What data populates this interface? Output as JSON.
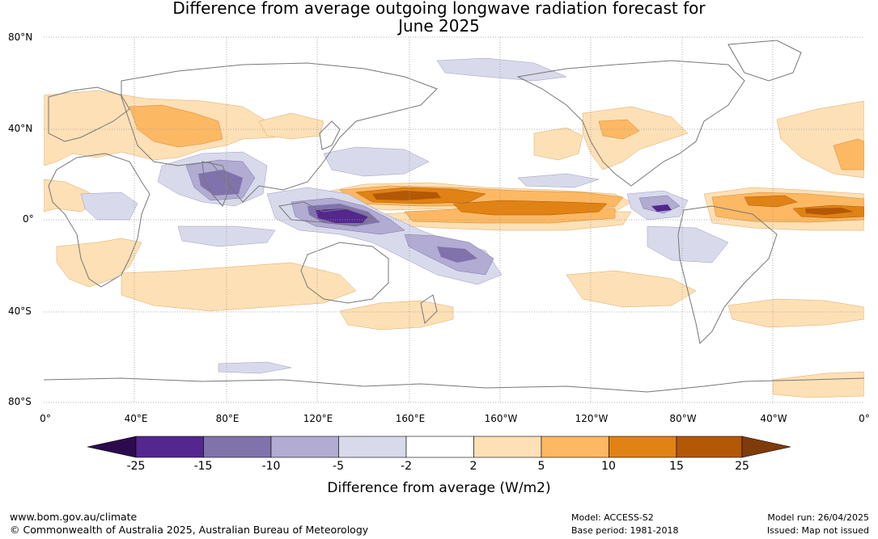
{
  "title": {
    "line1": "Difference from average outgoing longwave radiation forecast for",
    "line2": "June 2025"
  },
  "map": {
    "lat_labels": [
      "80°N",
      "40°N",
      "0°",
      "40°S",
      "80°S"
    ],
    "lon_labels": [
      "0°",
      "40°E",
      "80°E",
      "120°E",
      "160°E",
      "160°W",
      "120°W",
      "80°W",
      "40°W",
      "0°"
    ],
    "colors": {
      "land_outline": "#777777",
      "grid": "#999999"
    }
  },
  "colorbar": {
    "ticks": [
      "-25",
      "-15",
      "-10",
      "-5",
      "-2",
      "2",
      "5",
      "10",
      "15",
      "25"
    ],
    "bins": [
      {
        "range": "<-25",
        "color": "#2d0a4e"
      },
      {
        "range": "-25 to -15",
        "color": "#54278f"
      },
      {
        "range": "-15 to -10",
        "color": "#8073ac"
      },
      {
        "range": "-10 to -5",
        "color": "#b2abd2"
      },
      {
        "range": "-5 to -2",
        "color": "#d8daeb"
      },
      {
        "range": "-2 to 2",
        "color": "#ffffff"
      },
      {
        "range": "2 to 5",
        "color": "#fee0b6"
      },
      {
        "range": "5 to 10",
        "color": "#fdb863"
      },
      {
        "range": "10 to 15",
        "color": "#e08214"
      },
      {
        "range": "15 to 25",
        "color": "#b35806"
      },
      {
        "range": ">25",
        "color": "#7f3b08"
      }
    ],
    "label": "Difference from average (W/m2)"
  },
  "footer": {
    "url": "www.bom.gov.au/climate",
    "copyright": "© Commonwealth of Australia 2025, Australian Bureau of Meteorology",
    "model": "Model: ACCESS-S2",
    "base_period": "Base period: 1981-2018",
    "model_run": "Model run: 26/04/2025",
    "issued": "Issued: Map not issued"
  }
}
